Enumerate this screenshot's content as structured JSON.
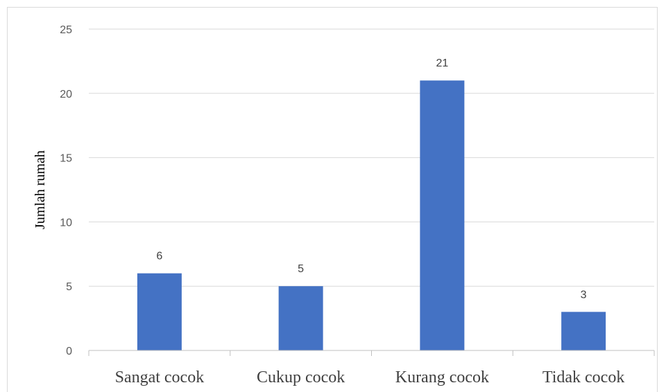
{
  "chart_data": {
    "type": "bar",
    "categories": [
      "Sangat cocok",
      "Cukup cocok",
      "Kurang cocok",
      "Tidak cocok"
    ],
    "values": [
      6,
      5,
      21,
      3
    ],
    "data_labels": [
      "6",
      "5",
      "21",
      "3"
    ],
    "ylabel": "Jumlah rumah",
    "xlabel": "",
    "ylim": [
      0,
      25
    ],
    "yticks": [
      0,
      5,
      10,
      15,
      20,
      25
    ],
    "ytick_labels": [
      "0",
      "5",
      "10",
      "15",
      "20",
      "25"
    ],
    "grid": true,
    "legend": "none",
    "bar_color": "#4472c4",
    "grid_color": "#d9d9d9"
  }
}
